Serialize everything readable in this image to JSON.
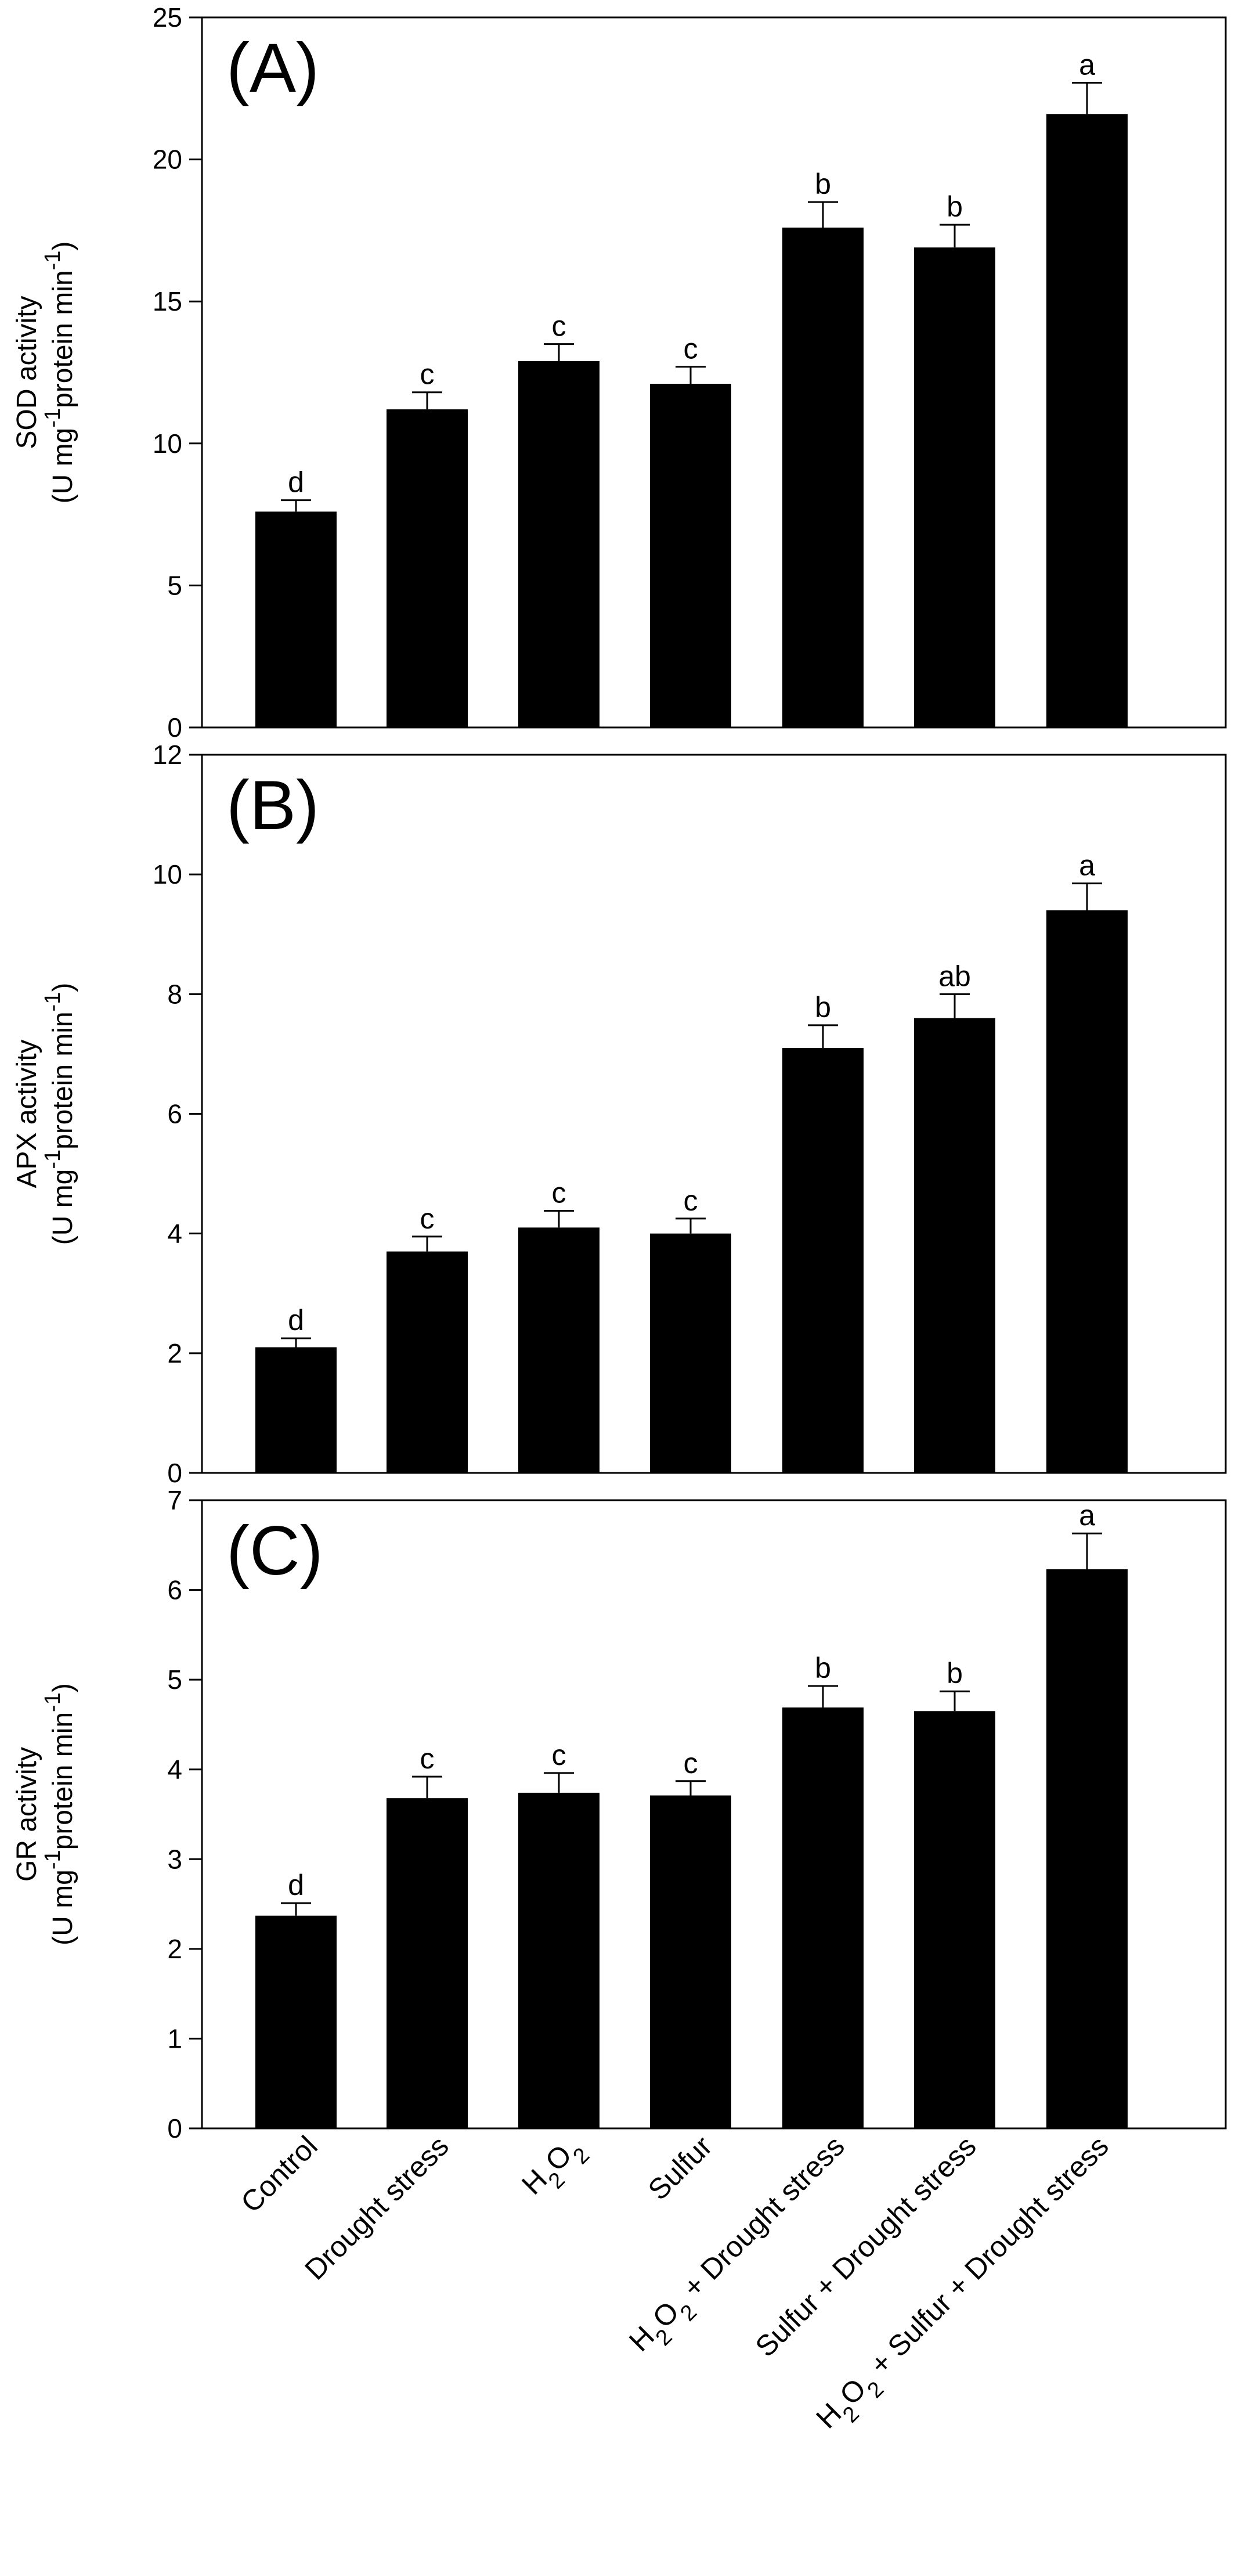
{
  "figure": {
    "categories": [
      {
        "main": "Control",
        "sub": ""
      },
      {
        "main": "Drought stress",
        "sub": ""
      },
      {
        "parts": [
          {
            "t": "H",
            "sub": false
          },
          {
            "t": "2",
            "sub": true
          },
          {
            "t": "O",
            "sub": false
          },
          {
            "t": "2",
            "sub": true
          }
        ]
      },
      {
        "main": "Sulfur",
        "sub": ""
      },
      {
        "parts": [
          {
            "t": "H",
            "sub": false
          },
          {
            "t": "2",
            "sub": true
          },
          {
            "t": "O",
            "sub": false
          },
          {
            "t": "2",
            "sub": true
          },
          {
            "t": " + Drought stress",
            "sub": false
          }
        ]
      },
      {
        "parts": [
          {
            "t": "Sulfur + Drought stress",
            "sub": false
          }
        ]
      },
      {
        "parts": [
          {
            "t": "H",
            "sub": false
          },
          {
            "t": "2",
            "sub": true
          },
          {
            "t": "O",
            "sub": false
          },
          {
            "t": "2",
            "sub": true
          },
          {
            "t": " + Sulfur + Drought stress",
            "sub": false
          }
        ]
      }
    ]
  },
  "chart_data": [
    {
      "type": "bar",
      "panel_label": "(A)",
      "ylabel_line1": "SOD activity",
      "ylabel_line2_parts": [
        {
          "t": "(U mg",
          "sup": false
        },
        {
          "t": "-1",
          "sup": true
        },
        {
          "t": "protein min",
          "sup": false
        },
        {
          "t": "-1",
          "sup": true
        },
        {
          "t": ")",
          "sup": false
        }
      ],
      "categories": [
        "Control",
        "Drought stress",
        "H2O2",
        "Sulfur",
        "H2O2 + Drought stress",
        "Sulfur + Drought stress",
        "H2O2 + Sulfur + Drought stress"
      ],
      "values": [
        7.6,
        11.2,
        12.9,
        12.1,
        17.6,
        16.9,
        21.6
      ],
      "errors": [
        0.4,
        0.6,
        0.6,
        0.6,
        0.9,
        0.8,
        1.1
      ],
      "significance": [
        "d",
        "c",
        "c",
        "c",
        "b",
        "b",
        "a"
      ],
      "ylim": [
        0,
        25
      ],
      "yticks": [
        0,
        5,
        10,
        15,
        20,
        25
      ],
      "bar_color": "#000000"
    },
    {
      "type": "bar",
      "panel_label": "(B)",
      "ylabel_line1": "APX activity",
      "ylabel_line2_parts": [
        {
          "t": "(U mg",
          "sup": false
        },
        {
          "t": "-1",
          "sup": true
        },
        {
          "t": "protein min",
          "sup": false
        },
        {
          "t": "-1",
          "sup": true
        },
        {
          "t": ")",
          "sup": false
        }
      ],
      "categories": [
        "Control",
        "Drought stress",
        "H2O2",
        "Sulfur",
        "H2O2 + Drought stress",
        "Sulfur + Drought stress",
        "H2O2 + Sulfur + Drought stress"
      ],
      "values": [
        2.1,
        3.7,
        4.1,
        4.0,
        7.1,
        7.6,
        9.4
      ],
      "errors": [
        0.15,
        0.25,
        0.28,
        0.25,
        0.38,
        0.4,
        0.45
      ],
      "significance": [
        "d",
        "c",
        "c",
        "c",
        "b",
        "ab",
        "a"
      ],
      "ylim": [
        0,
        12
      ],
      "yticks": [
        0,
        2,
        4,
        6,
        8,
        10,
        12
      ],
      "bar_color": "#000000"
    },
    {
      "type": "bar",
      "panel_label": "(C)",
      "ylabel_line1": "GR activity",
      "ylabel_line2_parts": [
        {
          "t": "(U mg",
          "sup": false
        },
        {
          "t": "-1",
          "sup": true
        },
        {
          "t": "protein min",
          "sup": false
        },
        {
          "t": "-1",
          "sup": true
        },
        {
          "t": ")",
          "sup": false
        }
      ],
      "categories": [
        "Control",
        "Drought stress",
        "H2O2",
        "Sulfur",
        "H2O2 + Drought stress",
        "Sulfur + Drought stress",
        "H2O2 + Sulfur + Drought stress"
      ],
      "values": [
        2.37,
        3.68,
        3.74,
        3.71,
        4.69,
        4.65,
        6.23
      ],
      "errors": [
        0.14,
        0.24,
        0.22,
        0.16,
        0.24,
        0.22,
        0.4
      ],
      "significance": [
        "d",
        "c",
        "c",
        "c",
        "b",
        "b",
        "a"
      ],
      "ylim": [
        0,
        7
      ],
      "yticks": [
        0,
        1,
        2,
        3,
        4,
        5,
        6,
        7
      ],
      "bar_color": "#000000"
    }
  ]
}
